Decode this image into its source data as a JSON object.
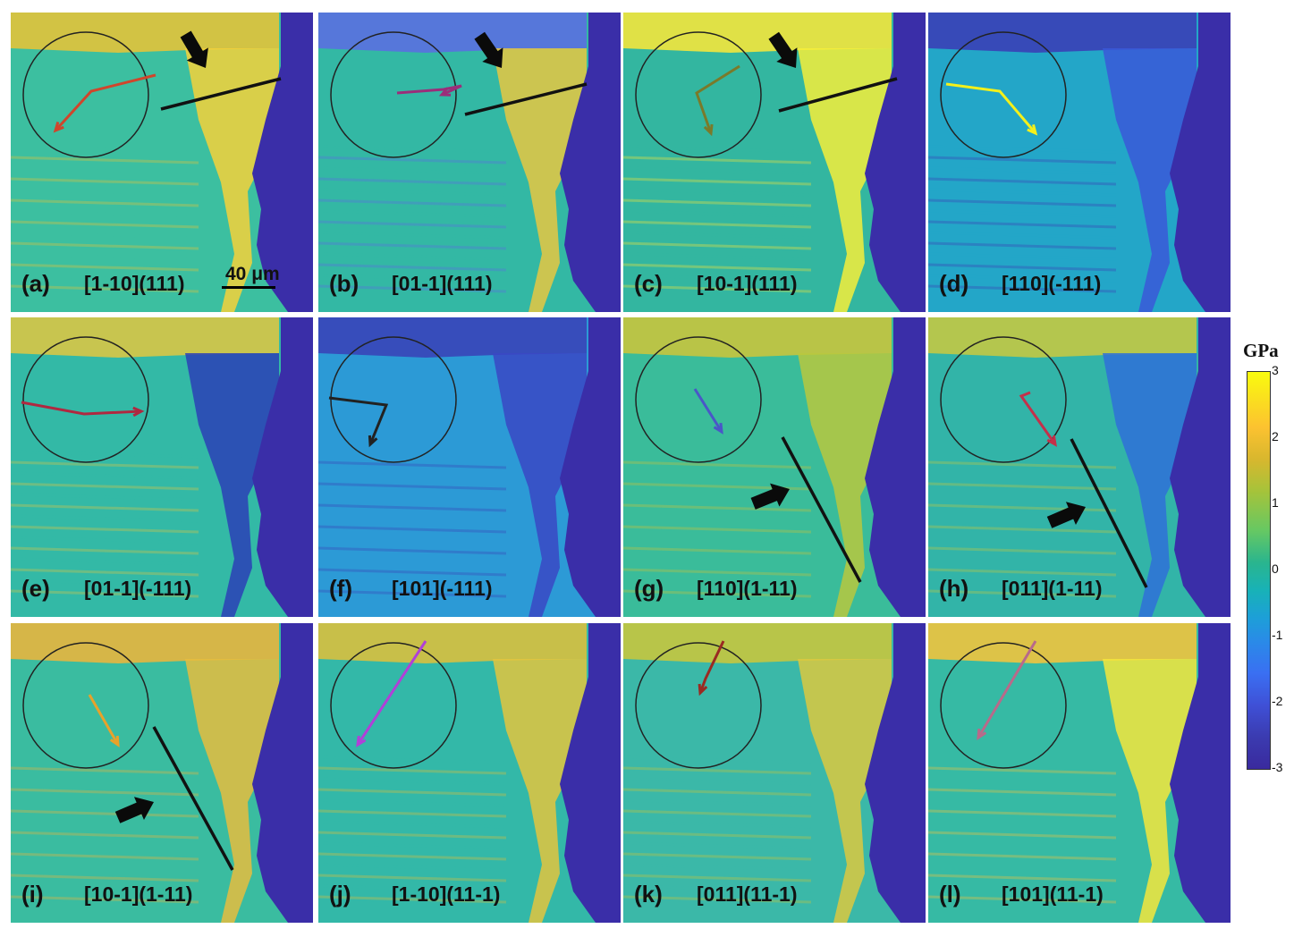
{
  "panels": [
    {
      "letter": "(a)",
      "system": "[1-10](111)",
      "arrow_color": "#d0452b",
      "scale_label": "40 μm",
      "has_trace": true
    },
    {
      "letter": "(b)",
      "system": "[01-1](111)",
      "arrow_color": "#9b2d7a",
      "has_trace": true
    },
    {
      "letter": "(c)",
      "system": "[10-1](111)",
      "arrow_color": "#7a7a2a",
      "has_trace": true
    },
    {
      "letter": "(d)",
      "system": "[110](-111)",
      "arrow_color": "#f4f01a",
      "has_trace": false
    },
    {
      "letter": "(e)",
      "system": "[01-1](-111)",
      "arrow_color": "#b02840",
      "has_trace": false
    },
    {
      "letter": "(f)",
      "system": "[101](-111)",
      "arrow_color": "#222222",
      "has_trace": false
    },
    {
      "letter": "(g)",
      "system": "[110](1-11)",
      "arrow_color": "#4a56c8",
      "has_trace": true
    },
    {
      "letter": "(h)",
      "system": "[011](1-11)",
      "arrow_color": "#c4304a",
      "has_trace": true
    },
    {
      "letter": "(i)",
      "system": "[10-1](1-11)",
      "arrow_color": "#e8a22a",
      "has_trace": true
    },
    {
      "letter": "(j)",
      "system": "[1-10](11-1)",
      "arrow_color": "#b040d8",
      "has_trace": false
    },
    {
      "letter": "(k)",
      "system": "[011](11-1)",
      "arrow_color": "#9a2a22",
      "has_trace": false
    },
    {
      "letter": "(l)",
      "system": "[101](11-1)",
      "arrow_color": "#b86a8a",
      "has_trace": false
    }
  ],
  "colorbar": {
    "unit": "GPa",
    "ticks": [
      "3",
      "2",
      "1",
      "0",
      "-1",
      "-2",
      "-3"
    ],
    "colors": {
      "max": "#f9fb0e",
      "zero": "#18b2b7",
      "min": "#3a2a9e"
    }
  }
}
